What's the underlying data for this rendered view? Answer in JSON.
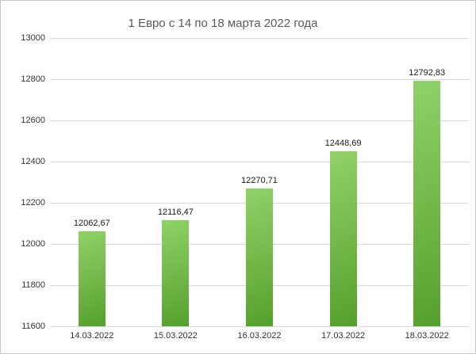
{
  "chart_data": {
    "type": "bar",
    "title": "1 Евро с 14 по 18 марта 2022 года",
    "categories": [
      "14.03.2022",
      "15.03.2022",
      "16.03.2022",
      "17.03.2022",
      "18.03.2022"
    ],
    "values": [
      12062.67,
      12116.47,
      12270.71,
      12448.69,
      12792.83
    ],
    "value_labels": [
      "12062,67",
      "12116,47",
      "12270,71",
      "12448,69",
      "12792,83"
    ],
    "xlabel": "",
    "ylabel": "",
    "ylim": [
      11600,
      13000
    ],
    "ytick_step": 200,
    "yticks": [
      "13000",
      "12800",
      "12600",
      "12400",
      "12200",
      "12000",
      "11800",
      "11600"
    ],
    "grid": true,
    "legend": "none",
    "colors": {
      "bar_gradient_start": "#90d269",
      "bar_gradient_end": "#55a02c",
      "grid": "#d9d9d9",
      "text": "#333333",
      "value_text": "#1a1a1a",
      "title": "#595959",
      "background": "#ffffff",
      "border": "#c8c8c8"
    }
  }
}
